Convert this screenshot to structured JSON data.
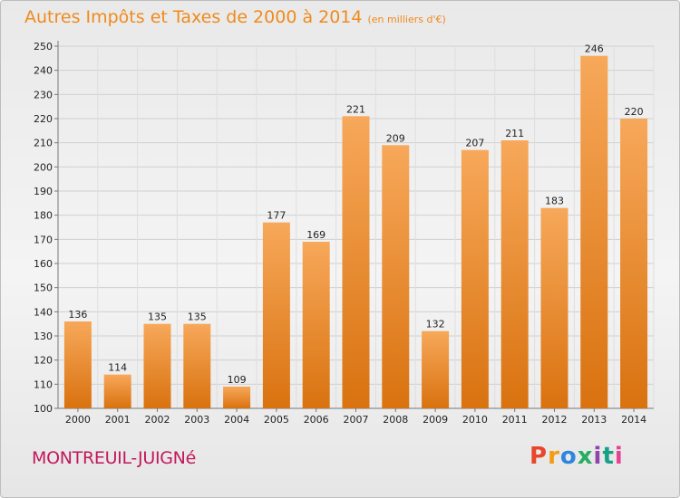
{
  "title": "Autres Impôts et Taxes de 2000 à 2014",
  "title_unit": "(en milliers d'€)",
  "commune": "MONTREUIL-JUIGNé",
  "logo": "Proxiti",
  "colors": {
    "bar_top": "#f7a85a",
    "bar_bottom": "#d9720f",
    "title": "#f08a1c",
    "commune": "#c2185b"
  },
  "chart_data": {
    "type": "bar",
    "title": "Autres Impôts et Taxes de 2000 à 2014",
    "subtitle": "(en milliers d'€)",
    "categories": [
      "2000",
      "2001",
      "2002",
      "2003",
      "2004",
      "2005",
      "2006",
      "2007",
      "2008",
      "2009",
      "2010",
      "2011",
      "2012",
      "2013",
      "2014"
    ],
    "values": [
      136,
      114,
      135,
      135,
      109,
      177,
      169,
      221,
      209,
      132,
      207,
      211,
      183,
      246,
      220
    ],
    "ylim": [
      100,
      250
    ],
    "yticks": [
      100,
      110,
      120,
      130,
      140,
      150,
      160,
      170,
      180,
      190,
      200,
      210,
      220,
      230,
      240,
      250
    ],
    "grid": true,
    "data_labels": true
  }
}
